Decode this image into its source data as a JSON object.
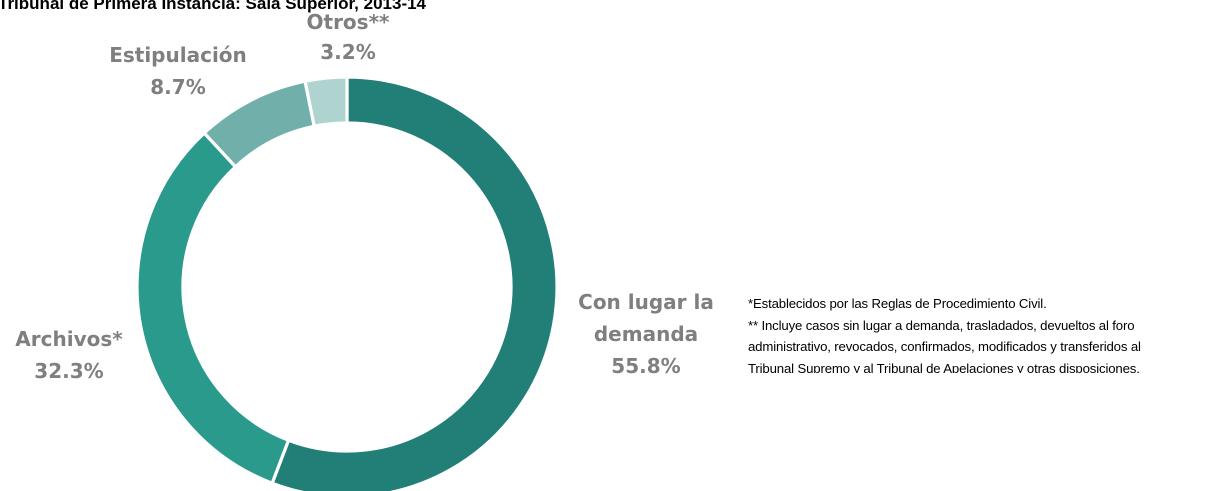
{
  "chart_data": {
    "type": "pie",
    "title": "Tribunal de Primera Instancia: Sala Superior, 2013-14",
    "donut": true,
    "slices": [
      {
        "label_lines": [
          "Con lugar la",
          "demanda"
        ],
        "value_label": "55.8%",
        "value": 55.8,
        "color": "#217f77"
      },
      {
        "label_lines": [
          "Archivos*"
        ],
        "value_label": "32.3%",
        "value": 32.3,
        "color": "#2a9a8d"
      },
      {
        "label_lines": [
          "Estipulación"
        ],
        "value_label": "8.7%",
        "value": 8.7,
        "color": "#71b0aa"
      },
      {
        "label_lines": [
          "Otros**"
        ],
        "value_label": "3.2%",
        "value": 3.2,
        "color": "#afd3cf"
      }
    ],
    "label_color": "#7f7f7f"
  },
  "footnotes": {
    "line1": "*Establecidos por las Reglas de Procedimiento Civil.",
    "line2": "** Incluye casos sin lugar a  demanda, trasladados, devueltos al foro",
    "line3": "administrativo, revocados, confirmados, modificados y transferidos al",
    "line4": "Tribunal Supremo y al Tribunal de Apelaciones y otras disposiciones."
  }
}
